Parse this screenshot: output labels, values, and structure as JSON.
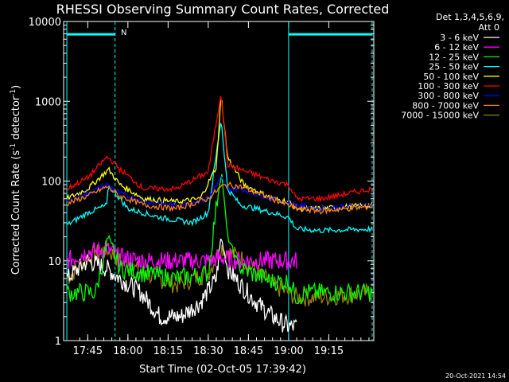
{
  "chart_data": {
    "type": "line",
    "title": "RHESSI Observing Summary Count Rates, Corrected",
    "xlabel": "Start Time (02-Oct-05 17:39:42)",
    "ylabel_main": "Corrected Count Rate (s",
    "ylabel_sup1": "-1",
    "ylabel_mid": " detector",
    "ylabel_sup2": "-1",
    "ylabel_end": ")",
    "y_scale": "log",
    "ylim": [
      1,
      10000
    ],
    "xlim_minutes": [
      17.6,
      19.53
    ],
    "x_ticks": [
      {
        "label": "17:45",
        "value": 17.75
      },
      {
        "label": "18:00",
        "value": 18.0
      },
      {
        "label": "18:15",
        "value": 18.25
      },
      {
        "label": "18:30",
        "value": 18.5
      },
      {
        "label": "18:45",
        "value": 18.75
      },
      {
        "label": "19:00",
        "value": 19.0
      },
      {
        "label": "19:15",
        "value": 19.25
      }
    ],
    "y_ticks": [
      {
        "label": "1",
        "value": 1
      },
      {
        "label": "10",
        "value": 10
      },
      {
        "label": "100",
        "value": 100
      },
      {
        "label": "1000",
        "value": 1000
      },
      {
        "label": "10000",
        "value": 10000
      }
    ],
    "legend_header1": "Det 1,3,4,5,6,9,",
    "legend_header2": "Att 0",
    "night_marker": "N",
    "series": [
      {
        "name": "3 - 6 keV",
        "color": "#ffffff",
        "x": [
          17.62,
          17.75,
          17.87,
          17.95,
          18.08,
          18.2,
          18.33,
          18.45,
          18.55,
          18.58,
          18.62,
          18.7,
          18.8,
          18.9,
          19.0,
          19.05
        ],
        "y": [
          6,
          10,
          8,
          6,
          4,
          2,
          2,
          3,
          6,
          20,
          8,
          5,
          3,
          2,
          1.5,
          1.5
        ]
      },
      {
        "name": "6 - 12 keV",
        "color": "#ff00ff",
        "x": [
          17.62,
          17.75,
          17.87,
          17.95,
          18.1,
          18.3,
          18.5,
          18.58,
          18.7,
          18.9,
          19.05
        ],
        "y": [
          10,
          13,
          14,
          11,
          10,
          10,
          10,
          11,
          10,
          10,
          10
        ]
      },
      {
        "name": "12 - 25 keV",
        "color": "#00ff00",
        "x": [
          17.62,
          17.8,
          17.88,
          17.9,
          17.95,
          18.1,
          18.3,
          18.5,
          18.58,
          18.62,
          18.7,
          18.9,
          19.0,
          19.05,
          19.1,
          19.3,
          19.52
        ],
        "y": [
          4,
          4,
          20,
          15,
          8,
          7,
          6,
          7,
          150,
          20,
          8,
          5.5,
          5.5,
          3.5,
          4,
          4,
          4
        ]
      },
      {
        "name": "25 - 50 keV",
        "color": "#00ffff",
        "x": [
          17.62,
          17.75,
          17.87,
          17.88,
          18.0,
          18.2,
          18.4,
          18.5,
          18.58,
          18.62,
          18.7,
          18.8,
          18.9,
          19.0,
          19.05,
          19.2,
          19.52
        ],
        "y": [
          28,
          40,
          50,
          90,
          45,
          35,
          30,
          40,
          600,
          80,
          50,
          45,
          40,
          35,
          25,
          24,
          25
        ]
      },
      {
        "name": "50 - 100 keV",
        "color": "#ffff00",
        "x": [
          17.62,
          17.75,
          17.88,
          17.95,
          18.1,
          18.3,
          18.45,
          18.55,
          18.58,
          18.62,
          18.72,
          18.9,
          19.0,
          19.05,
          19.2,
          19.52
        ],
        "y": [
          60,
          80,
          140,
          90,
          60,
          55,
          60,
          150,
          1200,
          200,
          90,
          60,
          55,
          45,
          45,
          50
        ]
      },
      {
        "name": "100 - 300 keV",
        "color": "#ff0000",
        "x": [
          17.62,
          17.75,
          17.87,
          17.9,
          17.95,
          18.1,
          18.3,
          18.5,
          18.58,
          18.62,
          18.7,
          18.9,
          19.0,
          19.05,
          19.2,
          19.52
        ],
        "y": [
          80,
          110,
          200,
          180,
          140,
          80,
          80,
          130,
          1300,
          160,
          140,
          100,
          90,
          60,
          60,
          80
        ]
      },
      {
        "name": "300 - 800 keV",
        "color": "#0000ff",
        "x": [
          17.62,
          17.75,
          17.87,
          17.95,
          18.1,
          18.3,
          18.5,
          18.58,
          18.62,
          18.7,
          18.9,
          19.05,
          19.2,
          19.52
        ],
        "y": [
          55,
          70,
          90,
          70,
          55,
          50,
          60,
          110,
          80,
          80,
          60,
          50,
          45,
          50
        ]
      },
      {
        "name": "800 - 7000 keV",
        "color": "#ff8000",
        "x": [
          17.62,
          17.75,
          17.87,
          17.95,
          18.1,
          18.3,
          18.5,
          18.58,
          18.62,
          18.7,
          18.9,
          19.05,
          19.2,
          19.52
        ],
        "y": [
          52,
          65,
          85,
          65,
          50,
          45,
          60,
          85,
          90,
          85,
          60,
          45,
          42,
          48
        ]
      },
      {
        "name": "7000 - 15000 keV",
        "color": "#998000",
        "x": [
          17.62,
          17.75,
          17.87,
          17.95,
          18.1,
          18.3,
          18.5,
          18.58,
          18.62,
          18.7,
          18.9,
          19.05,
          19.2,
          19.52
        ],
        "y": [
          6,
          11,
          14,
          10,
          7,
          5,
          7,
          15,
          13,
          11,
          5,
          3.5,
          3.5,
          4
        ]
      }
    ],
    "attenuator_segments": [
      {
        "x": [
          17.62,
          17.92
        ],
        "y": 6900
      },
      {
        "x": [
          19.0,
          19.52
        ],
        "y": 6900
      }
    ],
    "vertical_lines": [
      {
        "x": 17.62,
        "color": "#00ffff",
        "style": "solid"
      },
      {
        "x": 17.92,
        "color": "#00ffff",
        "style": "dashed"
      },
      {
        "x": 19.0,
        "color": "#00ffff",
        "style": "solid"
      },
      {
        "x": 19.52,
        "color": "#00ffff",
        "style": "dashed"
      }
    ]
  },
  "footer_timestamp": "20-Oct-2021 14:54"
}
